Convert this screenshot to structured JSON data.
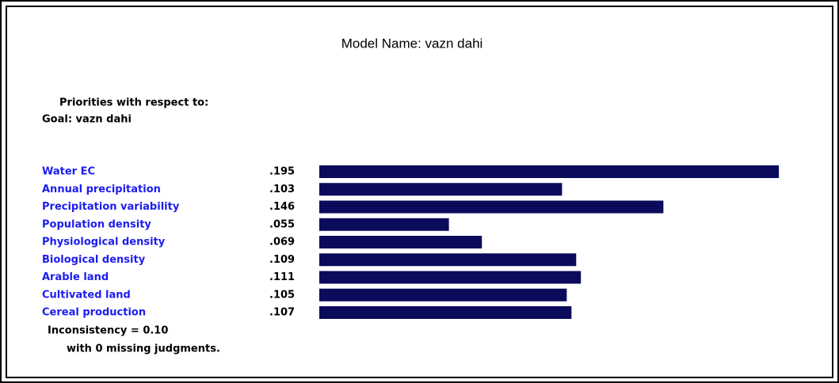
{
  "chart_data": {
    "type": "bar",
    "title": "Model Name: vazn dahi",
    "subtitle": "Priorities with respect to:",
    "goal": "Goal: vazn dahi",
    "categories": [
      "Water EC",
      "Annual precipitation",
      "Precipitation variability",
      "Population density",
      "Physiological density",
      "Biological density",
      "Arable land",
      "Cultivated land",
      "Cereal production"
    ],
    "values": [
      0.195,
      0.103,
      0.146,
      0.055,
      0.069,
      0.109,
      0.111,
      0.105,
      0.107
    ],
    "value_labels": [
      ".195",
      ".103",
      ".146",
      ".055",
      ".069",
      ".109",
      ".111",
      ".105",
      ".107"
    ],
    "color": "#0b0b5c",
    "label_color": "#1c1cf0",
    "annotations": [
      "Inconsistency = 0.10",
      "with 0  missing judgments."
    ]
  }
}
